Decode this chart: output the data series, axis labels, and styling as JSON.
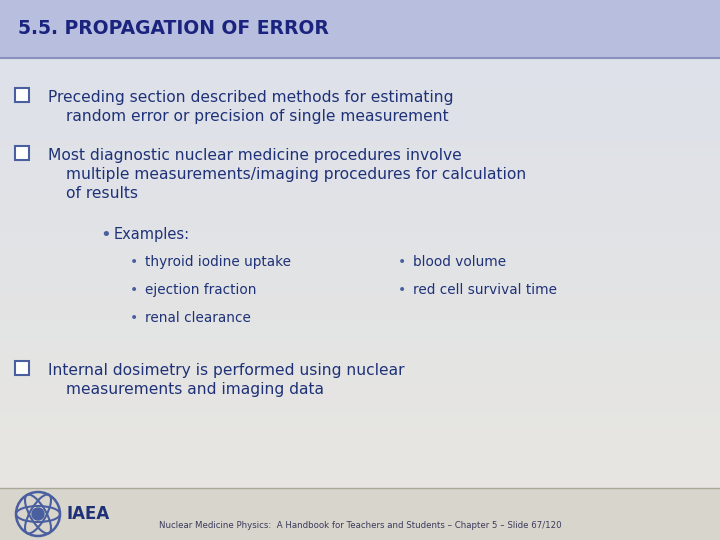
{
  "title": "5.5. PROPAGATION OF ERROR",
  "title_color": "#1a237e",
  "title_bg_color": "#b8bedd",
  "body_bg_top": "#dde0ea",
  "body_bg_bottom": "#e8e6e0",
  "footer_bg_color": "#d8d5cc",
  "text_color": "#1f3278",
  "bullet_color": "#4a5fa0",
  "footer_text": "Nuclear Medicine Physics:  A Handbook for Teachers and Students – Chapter 5 – Slide 67/120",
  "bullet1_line1": "Preceding section described methods for estimating",
  "bullet1_line2": "random error or precision of single measurement",
  "bullet2_line1": "Most diagnostic nuclear medicine procedures involve",
  "bullet2_line2": "multiple measurements/imaging procedures for calculation",
  "bullet2_line3": "of results",
  "sub_bullet_examples": "Examples:",
  "sub_bullets_left": [
    "thyroid iodine uptake",
    "ejection fraction",
    "renal clearance"
  ],
  "sub_bullets_right": [
    "blood volume",
    "red cell survival time"
  ],
  "bullet3_line1": "Internal dosimetry is performed using nuclear",
  "bullet3_line2": "measurements and imaging data"
}
